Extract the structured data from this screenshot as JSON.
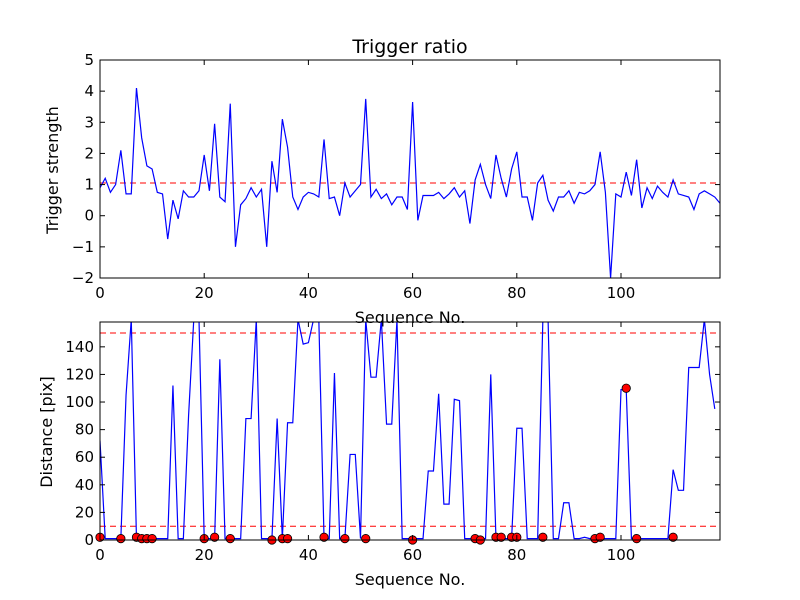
{
  "chart_data": [
    {
      "type": "line",
      "title": "Trigger ratio",
      "xlabel": "Sequence No.",
      "ylabel": "Trigger strength",
      "xlim": [
        0,
        119
      ],
      "ylim": [
        -2,
        5
      ],
      "xticks": [
        "0",
        "20",
        "40",
        "60",
        "80",
        "100"
      ],
      "yticks": [
        "−2",
        "−1",
        "0",
        "1",
        "2",
        "3",
        "4",
        "5"
      ],
      "grid": false,
      "line_color": "#0000ff",
      "threshold": 1.05,
      "threshold_color": "#ff0000",
      "series": [
        {
          "values": [
            0.9,
            1.2,
            0.75,
            1.0,
            2.1,
            0.7,
            0.7,
            4.1,
            2.5,
            1.6,
            1.5,
            0.75,
            0.7,
            -0.75,
            0.5,
            -0.1,
            0.8,
            0.6,
            0.6,
            0.8,
            1.95,
            0.8,
            2.95,
            0.6,
            0.45,
            3.6,
            -1.0,
            0.35,
            0.55,
            0.9,
            0.6,
            0.85,
            -1.0,
            1.75,
            0.75,
            3.1,
            2.2,
            0.6,
            0.2,
            0.6,
            0.75,
            0.7,
            0.6,
            2.45,
            0.55,
            0.6,
            0.0,
            1.05,
            0.6,
            0.8,
            1.0,
            3.75,
            0.6,
            0.85,
            0.55,
            0.7,
            0.35,
            0.6,
            0.6,
            0.2,
            3.65,
            -0.15,
            0.65,
            0.65,
            0.65,
            0.75,
            0.55,
            0.7,
            0.9,
            0.6,
            0.8,
            -0.25,
            1.15,
            1.65,
            1.0,
            0.55,
            1.95,
            1.2,
            0.6,
            1.5,
            2.05,
            0.6,
            0.6,
            -0.15,
            1.05,
            1.3,
            0.5,
            0.15,
            0.6,
            0.6,
            0.8,
            0.4,
            0.75,
            0.7,
            0.8,
            1.0,
            2.05,
            0.75,
            -2.0,
            0.7,
            0.6,
            1.4,
            0.65,
            1.8,
            0.25,
            0.9,
            0.55,
            0.95,
            0.75,
            0.6,
            1.15,
            0.7,
            0.65,
            0.6,
            0.2,
            0.7,
            0.8,
            0.7,
            0.6,
            0.4
          ]
        }
      ]
    },
    {
      "type": "line",
      "title": "",
      "xlabel": "Sequence No.",
      "ylabel": "Distance [pix]",
      "xlim": [
        0,
        119
      ],
      "ylim": [
        0,
        158
      ],
      "xticks": [
        "0",
        "20",
        "40",
        "60",
        "80",
        "100"
      ],
      "yticks": [
        "0",
        "20",
        "40",
        "60",
        "80",
        "100",
        "120",
        "140"
      ],
      "grid": false,
      "line_color": "#0000ff",
      "thresholds": [
        10,
        150
      ],
      "threshold_color": "#ff0000",
      "marker_color": "#ff0000",
      "series": [
        {
          "values": [
            72,
            1,
            1,
            1,
            1,
            105,
            160,
            1,
            1,
            1,
            1,
            1,
            1,
            1,
            112,
            1,
            1,
            90,
            160,
            160,
            1,
            1,
            1,
            131,
            1,
            1,
            1,
            1,
            88,
            88,
            160,
            1,
            1,
            1,
            88,
            1,
            85,
            85,
            160,
            142,
            143,
            160,
            160,
            1,
            1,
            121,
            1,
            1,
            62,
            62,
            1,
            160,
            118,
            118,
            160,
            84,
            84,
            160,
            1,
            1,
            1,
            1,
            1,
            50,
            50,
            106,
            26,
            26,
            102,
            101,
            1,
            1,
            1,
            1,
            1,
            120,
            1,
            1,
            1,
            1,
            81,
            81,
            1,
            1,
            1,
            160,
            160,
            1,
            1,
            27,
            27,
            1,
            1,
            2,
            1,
            1,
            1,
            1,
            1,
            1,
            109,
            109,
            1,
            1,
            1,
            1,
            1,
            1,
            1,
            1,
            51,
            36,
            36,
            125,
            125,
            125,
            160,
            120,
            95
          ]
        }
      ],
      "markers": {
        "x": [
          0,
          4,
          7,
          8,
          9,
          10,
          20,
          22,
          25,
          33,
          35,
          36,
          43,
          47,
          51,
          60,
          72,
          73,
          76,
          77,
          79,
          80,
          85,
          95,
          96,
          101,
          103,
          110
        ],
        "y": [
          2,
          1,
          2,
          1,
          1,
          1,
          1,
          2,
          1,
          0,
          1,
          1,
          2,
          1,
          1,
          0,
          1,
          0,
          2,
          2,
          2,
          2,
          2,
          1,
          2,
          110,
          1,
          2
        ]
      }
    }
  ]
}
